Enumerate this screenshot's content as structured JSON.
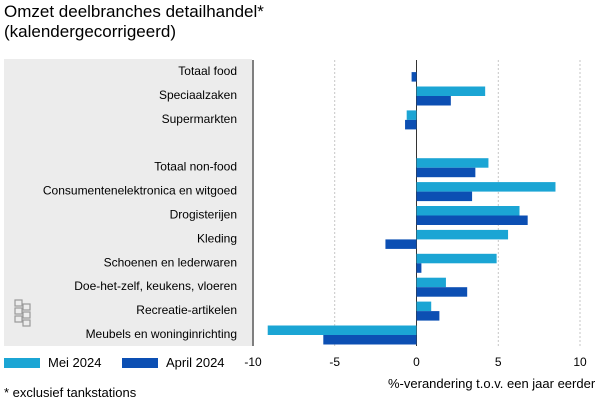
{
  "title": "Omzet deelbranches detailhandel*",
  "subtitle": "(kalendergecorrigeerd)",
  "footnote": "* exclusief tankstations",
  "colors": {
    "mei": "#1ba5d4",
    "april": "#0c4fb3",
    "panel": "#ececec",
    "grid": "#b8b8b8",
    "axis": "#555555"
  },
  "logo_icon": "cbs-logo-icon",
  "chart_data": {
    "type": "bar",
    "orientation": "horizontal",
    "xlabel": "%-verandering t.o.v. een jaar eerder",
    "xlim": [
      -10,
      10
    ],
    "xticks": [
      "-10",
      "-5",
      "0",
      "5",
      "10"
    ],
    "xtick_values": [
      -10,
      -5,
      0,
      5,
      10
    ],
    "grid": true,
    "legend_position": "bottom-left",
    "categories": [
      "Totaal food",
      "Speciaalzaken",
      "Supermarkten",
      "",
      "Totaal non-food",
      "Consumentenelektronica en witgoed",
      "Drogisterijen",
      "Kleding",
      "Schoenen en lederwaren",
      "Doe-het-zelf, keukens, vloeren",
      "Recreatie-artikelen",
      "Meubels en woninginrichting"
    ],
    "series": [
      {
        "name": "Mei 2024",
        "color": "#1ba5d4",
        "values": [
          0,
          4.2,
          -0.6,
          null,
          4.4,
          8.5,
          6.3,
          5.6,
          4.9,
          1.8,
          0.9,
          -9.1
        ]
      },
      {
        "name": "April 2024",
        "color": "#0c4fb3",
        "values": [
          -0.3,
          2.1,
          -0.7,
          null,
          3.6,
          3.4,
          6.8,
          -1.9,
          0.3,
          3.1,
          1.4,
          -5.7
        ]
      }
    ]
  }
}
